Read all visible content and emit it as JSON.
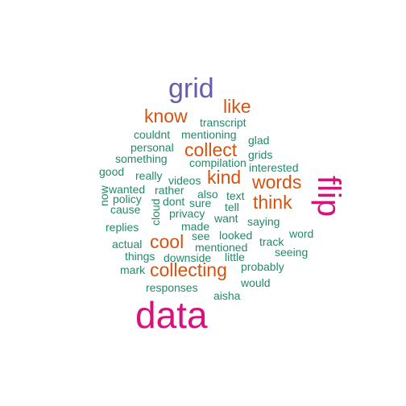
{
  "colors": {
    "magenta": "#d6137d",
    "purple": "#6a5cab",
    "orange": "#d4530f",
    "green": "#22896b"
  },
  "words": {
    "data": "data",
    "grid": "grid",
    "flip": "flip",
    "know": "know",
    "like": "like",
    "collect": "collect",
    "kind": "kind",
    "words": "words",
    "think": "think",
    "cool": "cool",
    "collecting": "collecting",
    "transcript": "transcript",
    "couldnt": "couldnt",
    "mentioning": "mentioning",
    "glad": "glad",
    "personal": "personal",
    "grids": "grids",
    "something": "something",
    "compilation": "compilation",
    "good": "good",
    "interested": "interested",
    "really": "really",
    "videos": "videos",
    "wanted": "wanted",
    "rather": "rather",
    "also": "also",
    "text": "text",
    "now": "now",
    "policy": "policy",
    "dont": "dont",
    "sure": "sure",
    "tell": "tell",
    "cause": "cause",
    "cloud": "cloud",
    "privacy": "privacy",
    "want": "want",
    "saying": "saying",
    "replies": "replies",
    "made": "made",
    "word": "word",
    "see": "see",
    "looked": "looked",
    "actual": "actual",
    "track": "track",
    "mentioned": "mentioned",
    "seeing": "seeing",
    "things": "things",
    "downside": "downside",
    "little": "little",
    "mark": "mark",
    "probably": "probably",
    "would": "would",
    "responses": "responses",
    "aisha": "aisha"
  }
}
